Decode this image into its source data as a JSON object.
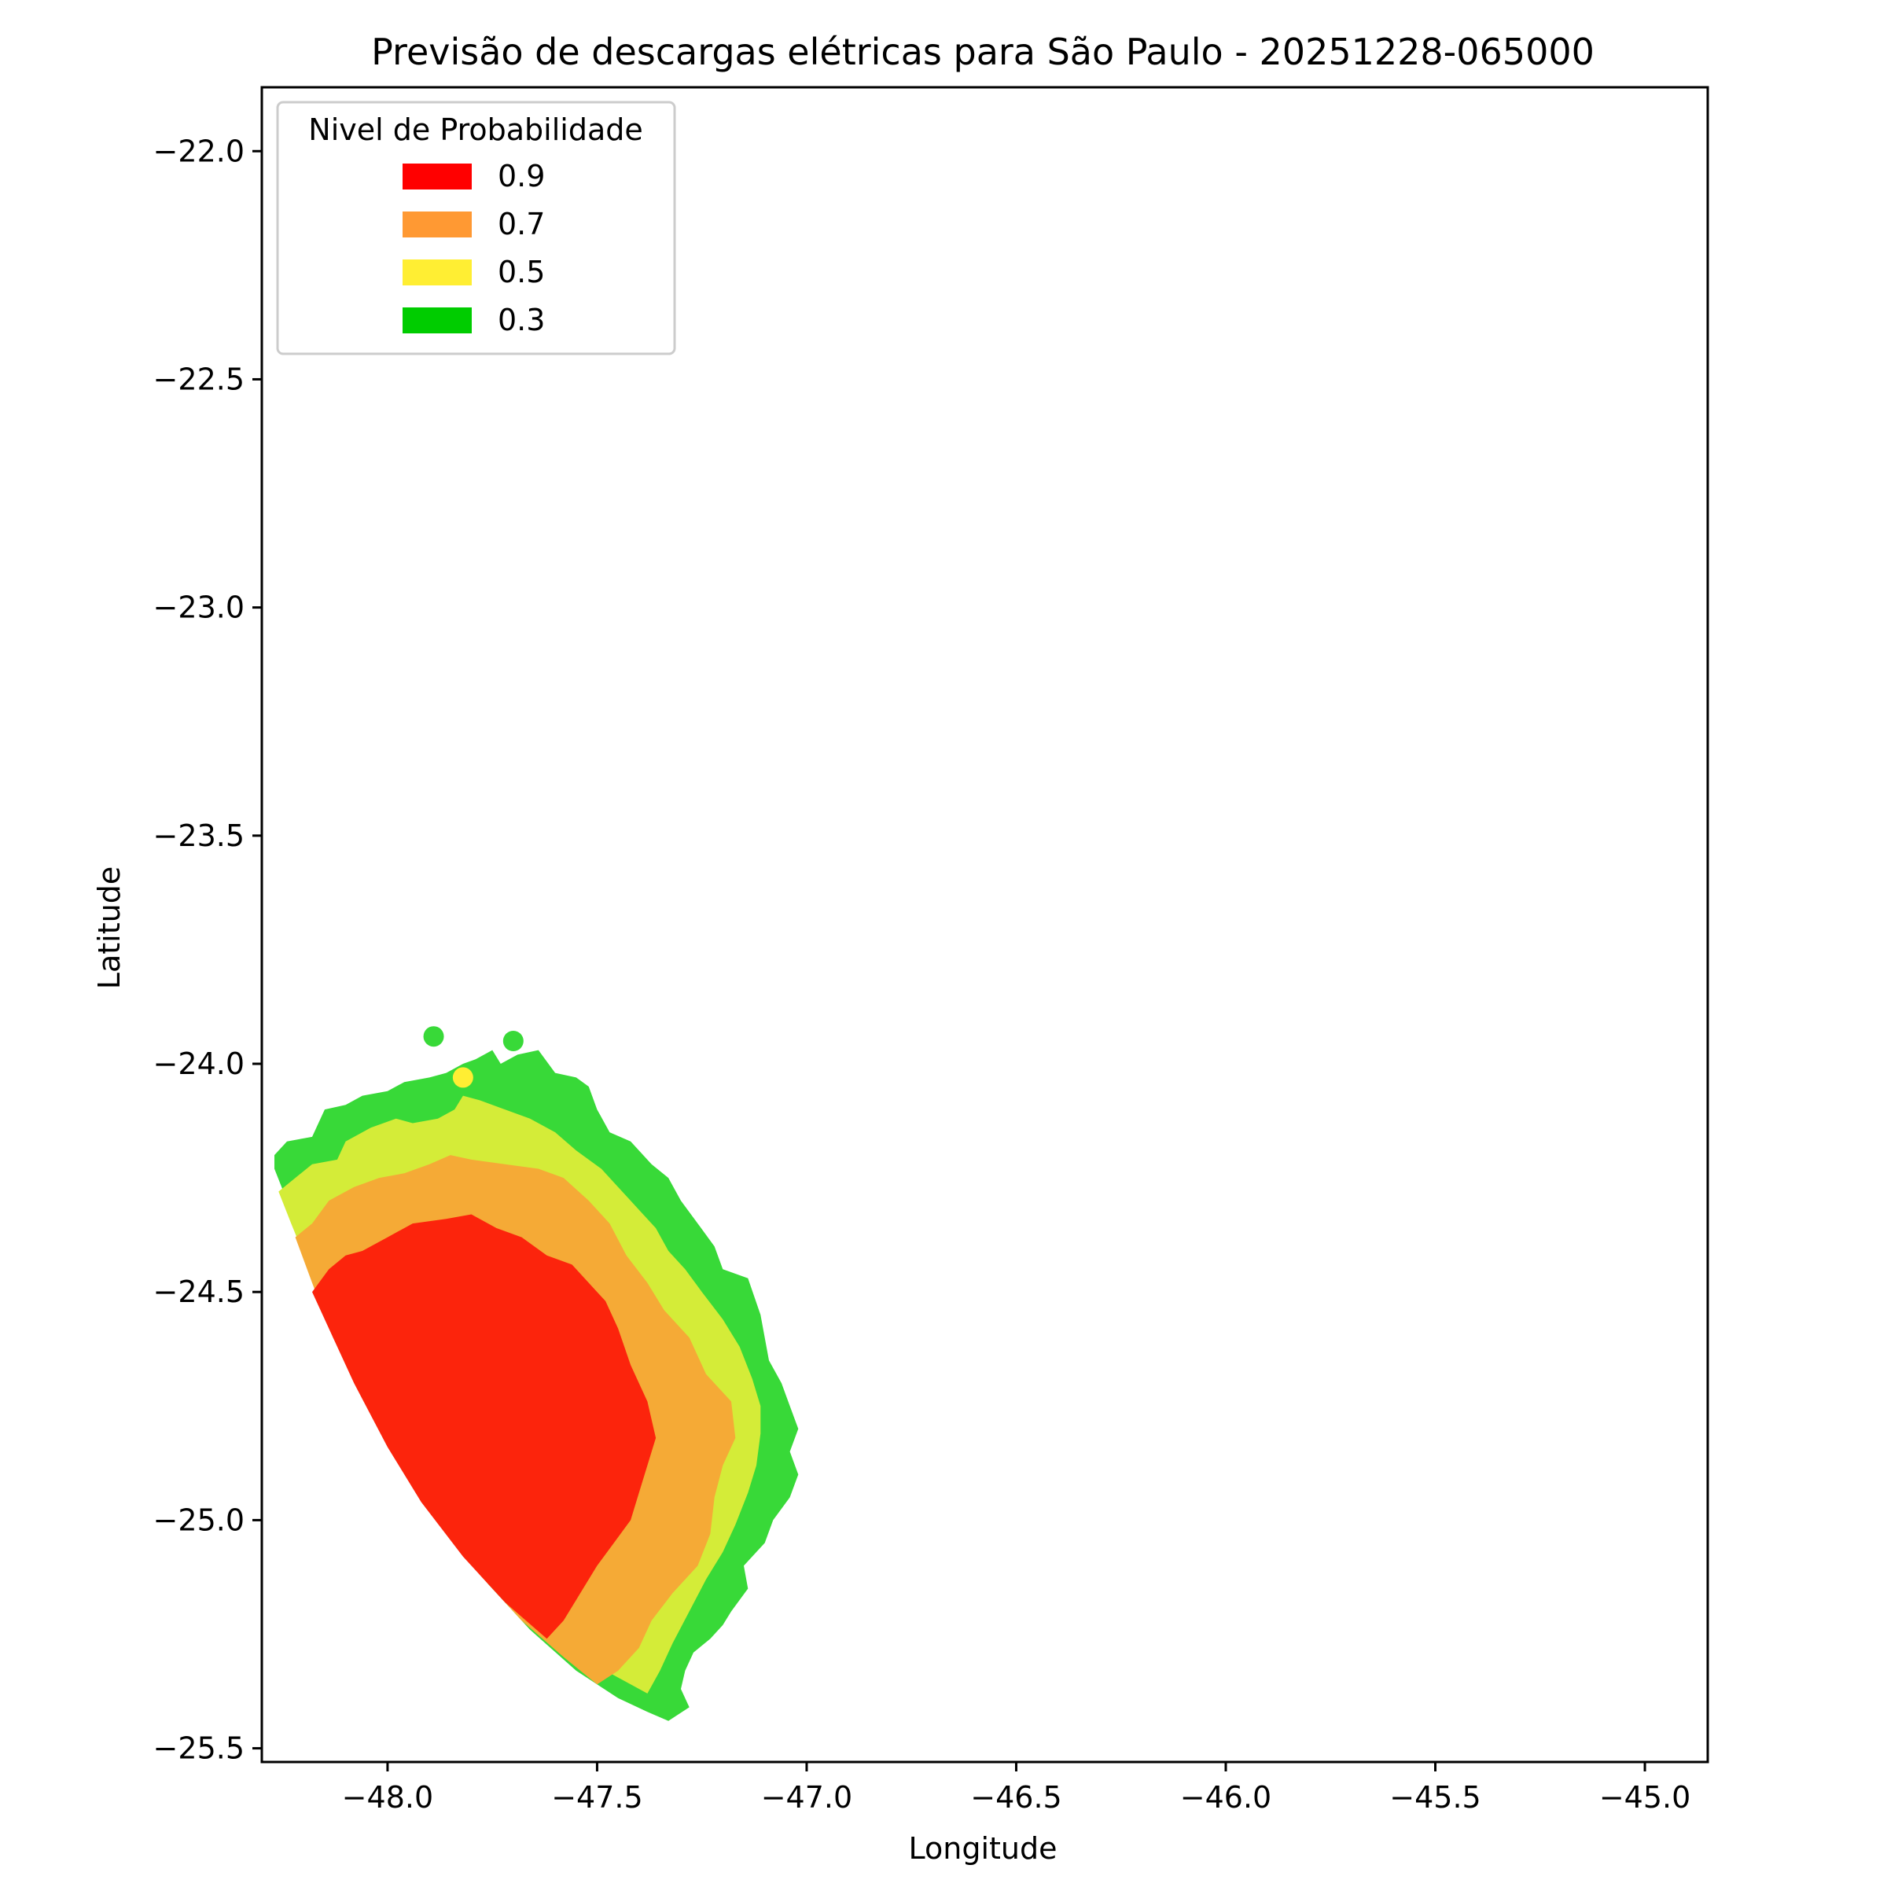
{
  "title": "Previsão de descargas elétricas para São Paulo - 20251228-065000",
  "chart_data": {
    "type": "heatmap",
    "title": "Previsão de descargas elétricas para São Paulo - 20251228-065000",
    "xlabel": "Longitude",
    "ylabel": "Latitude",
    "xlim": [
      -48.3,
      -44.85
    ],
    "ylim": [
      -25.53,
      -21.86
    ],
    "x_ticks": [
      -48.0,
      -47.5,
      -47.0,
      -46.5,
      -46.0,
      -45.5,
      -45.0
    ],
    "y_ticks": [
      -22.0,
      -22.5,
      -23.0,
      -23.5,
      -24.0,
      -24.5,
      -25.0,
      -25.5
    ],
    "x_tick_labels": [
      "−48.0",
      "−47.5",
      "−47.0",
      "−46.5",
      "−46.0",
      "−45.5",
      "−45.0"
    ],
    "y_tick_labels": [
      "−22.0",
      "−22.5",
      "−23.0",
      "−23.5",
      "−24.0",
      "−24.5",
      "−25.0",
      "−25.5"
    ],
    "grid": false,
    "legend": {
      "title": "Nivel de Probabilidade",
      "placement": "top-left",
      "entries": [
        {
          "label": "0.9",
          "color": "#ff0000"
        },
        {
          "label": "0.7",
          "color": "#ff9933"
        },
        {
          "label": "0.5",
          "color": "#ffee33"
        },
        {
          "label": "0.3",
          "color": "#00cc00"
        }
      ]
    },
    "levels": [
      {
        "level": "0.3",
        "color": "#38d938",
        "polygon": [
          [
            -48.27,
            -24.2
          ],
          [
            -48.24,
            -24.17
          ],
          [
            -48.18,
            -24.16
          ],
          [
            -48.15,
            -24.1
          ],
          [
            -48.1,
            -24.09
          ],
          [
            -48.06,
            -24.07
          ],
          [
            -48.0,
            -24.06
          ],
          [
            -47.96,
            -24.04
          ],
          [
            -47.9,
            -24.03
          ],
          [
            -47.86,
            -24.02
          ],
          [
            -47.82,
            -24.0
          ],
          [
            -47.79,
            -23.99
          ],
          [
            -47.75,
            -23.97
          ],
          [
            -47.73,
            -24.0
          ],
          [
            -47.69,
            -23.98
          ],
          [
            -47.64,
            -23.97
          ],
          [
            -47.6,
            -24.02
          ],
          [
            -47.55,
            -24.03
          ],
          [
            -47.52,
            -24.05
          ],
          [
            -47.5,
            -24.1
          ],
          [
            -47.47,
            -24.15
          ],
          [
            -47.42,
            -24.17
          ],
          [
            -47.37,
            -24.22
          ],
          [
            -47.33,
            -24.25
          ],
          [
            -47.3,
            -24.3
          ],
          [
            -47.26,
            -24.35
          ],
          [
            -47.22,
            -24.4
          ],
          [
            -47.2,
            -24.45
          ],
          [
            -47.14,
            -24.47
          ],
          [
            -47.11,
            -24.55
          ],
          [
            -47.09,
            -24.65
          ],
          [
            -47.06,
            -24.7
          ],
          [
            -47.04,
            -24.75
          ],
          [
            -47.02,
            -24.8
          ],
          [
            -47.04,
            -24.85
          ],
          [
            -47.02,
            -24.9
          ],
          [
            -47.04,
            -24.95
          ],
          [
            -47.08,
            -25.0
          ],
          [
            -47.1,
            -25.05
          ],
          [
            -47.15,
            -25.1
          ],
          [
            -47.14,
            -25.15
          ],
          [
            -47.18,
            -25.2
          ],
          [
            -47.2,
            -25.23
          ],
          [
            -47.23,
            -25.26
          ],
          [
            -47.27,
            -25.29
          ],
          [
            -47.29,
            -25.33
          ],
          [
            -47.3,
            -25.37
          ],
          [
            -47.28,
            -25.41
          ],
          [
            -47.33,
            -25.44
          ],
          [
            -47.38,
            -25.42
          ],
          [
            -47.45,
            -25.39
          ],
          [
            -47.55,
            -25.33
          ],
          [
            -47.66,
            -25.24
          ],
          [
            -47.76,
            -25.14
          ],
          [
            -47.87,
            -25.01
          ],
          [
            -47.97,
            -24.85
          ],
          [
            -48.05,
            -24.72
          ],
          [
            -48.12,
            -24.6
          ],
          [
            -48.17,
            -24.48
          ],
          [
            -48.21,
            -24.38
          ],
          [
            -48.24,
            -24.3
          ],
          [
            -48.27,
            -24.23
          ]
        ]
      },
      {
        "level": "0.5",
        "color": "#d4ec38",
        "polygon": [
          [
            -48.26,
            -24.28
          ],
          [
            -48.22,
            -24.25
          ],
          [
            -48.18,
            -24.22
          ],
          [
            -48.12,
            -24.21
          ],
          [
            -48.1,
            -24.17
          ],
          [
            -48.04,
            -24.14
          ],
          [
            -47.98,
            -24.12
          ],
          [
            -47.94,
            -24.13
          ],
          [
            -47.88,
            -24.12
          ],
          [
            -47.84,
            -24.1
          ],
          [
            -47.82,
            -24.07
          ],
          [
            -47.78,
            -24.08
          ],
          [
            -47.72,
            -24.1
          ],
          [
            -47.66,
            -24.12
          ],
          [
            -47.6,
            -24.15
          ],
          [
            -47.55,
            -24.19
          ],
          [
            -47.49,
            -24.23
          ],
          [
            -47.45,
            -24.27
          ],
          [
            -47.4,
            -24.32
          ],
          [
            -47.36,
            -24.36
          ],
          [
            -47.33,
            -24.41
          ],
          [
            -47.29,
            -24.45
          ],
          [
            -47.25,
            -24.5
          ],
          [
            -47.2,
            -24.56
          ],
          [
            -47.16,
            -24.62
          ],
          [
            -47.13,
            -24.69
          ],
          [
            -47.11,
            -24.75
          ],
          [
            -47.11,
            -24.81
          ],
          [
            -47.12,
            -24.88
          ],
          [
            -47.14,
            -24.94
          ],
          [
            -47.17,
            -25.01
          ],
          [
            -47.2,
            -25.07
          ],
          [
            -47.24,
            -25.13
          ],
          [
            -47.28,
            -25.2
          ],
          [
            -47.32,
            -25.27
          ],
          [
            -47.35,
            -25.33
          ],
          [
            -47.38,
            -25.38
          ],
          [
            -47.42,
            -25.36
          ],
          [
            -47.5,
            -25.32
          ],
          [
            -47.6,
            -25.25
          ],
          [
            -47.7,
            -25.16
          ],
          [
            -47.8,
            -25.06
          ],
          [
            -47.9,
            -24.94
          ],
          [
            -48.0,
            -24.8
          ],
          [
            -48.08,
            -24.66
          ],
          [
            -48.14,
            -24.54
          ],
          [
            -48.19,
            -24.44
          ],
          [
            -48.23,
            -24.35
          ]
        ]
      },
      {
        "level": "0.7",
        "color": "#f5aa36",
        "polygon": [
          [
            -48.22,
            -24.38
          ],
          [
            -48.18,
            -24.35
          ],
          [
            -48.14,
            -24.3
          ],
          [
            -48.08,
            -24.27
          ],
          [
            -48.02,
            -24.25
          ],
          [
            -47.96,
            -24.24
          ],
          [
            -47.9,
            -24.22
          ],
          [
            -47.85,
            -24.2
          ],
          [
            -47.8,
            -24.21
          ],
          [
            -47.72,
            -24.22
          ],
          [
            -47.64,
            -24.23
          ],
          [
            -47.58,
            -24.25
          ],
          [
            -47.52,
            -24.3
          ],
          [
            -47.47,
            -24.35
          ],
          [
            -47.43,
            -24.42
          ],
          [
            -47.38,
            -24.48
          ],
          [
            -47.34,
            -24.54
          ],
          [
            -47.28,
            -24.6
          ],
          [
            -47.24,
            -24.68
          ],
          [
            -47.18,
            -24.74
          ],
          [
            -47.17,
            -24.82
          ],
          [
            -47.2,
            -24.88
          ],
          [
            -47.22,
            -24.95
          ],
          [
            -47.23,
            -25.03
          ],
          [
            -47.26,
            -25.1
          ],
          [
            -47.32,
            -25.16
          ],
          [
            -47.37,
            -25.22
          ],
          [
            -47.4,
            -25.28
          ],
          [
            -47.45,
            -25.33
          ],
          [
            -47.5,
            -25.36
          ],
          [
            -47.58,
            -25.3
          ],
          [
            -47.68,
            -25.22
          ],
          [
            -47.78,
            -25.12
          ],
          [
            -47.88,
            -25.0
          ],
          [
            -47.98,
            -24.86
          ],
          [
            -48.06,
            -24.72
          ],
          [
            -48.13,
            -24.6
          ],
          [
            -48.18,
            -24.48
          ]
        ]
      },
      {
        "level": "0.9",
        "color": "#fc240c",
        "polygon": [
          [
            -48.18,
            -24.5
          ],
          [
            -48.14,
            -24.45
          ],
          [
            -48.1,
            -24.42
          ],
          [
            -48.06,
            -24.41
          ],
          [
            -48.0,
            -24.38
          ],
          [
            -47.94,
            -24.35
          ],
          [
            -47.86,
            -24.34
          ],
          [
            -47.8,
            -24.33
          ],
          [
            -47.74,
            -24.36
          ],
          [
            -47.68,
            -24.38
          ],
          [
            -47.62,
            -24.42
          ],
          [
            -47.56,
            -24.44
          ],
          [
            -47.52,
            -24.48
          ],
          [
            -47.48,
            -24.52
          ],
          [
            -47.45,
            -24.58
          ],
          [
            -47.42,
            -24.66
          ],
          [
            -47.38,
            -24.74
          ],
          [
            -47.36,
            -24.82
          ],
          [
            -47.38,
            -24.88
          ],
          [
            -47.4,
            -24.94
          ],
          [
            -47.42,
            -25.0
          ],
          [
            -47.46,
            -25.05
          ],
          [
            -47.5,
            -25.1
          ],
          [
            -47.54,
            -25.16
          ],
          [
            -47.58,
            -25.22
          ],
          [
            -47.62,
            -25.26
          ],
          [
            -47.72,
            -25.18
          ],
          [
            -47.82,
            -25.08
          ],
          [
            -47.92,
            -24.96
          ],
          [
            -48.0,
            -24.84
          ],
          [
            -48.08,
            -24.7
          ],
          [
            -48.13,
            -24.6
          ]
        ]
      }
    ],
    "spots": [
      {
        "lon": -47.89,
        "lat": -23.94,
        "color": "#38d938"
      },
      {
        "lon": -47.7,
        "lat": -23.95,
        "color": "#38d938"
      },
      {
        "lon": -47.82,
        "lat": -24.03,
        "color": "#ffee33"
      }
    ]
  }
}
